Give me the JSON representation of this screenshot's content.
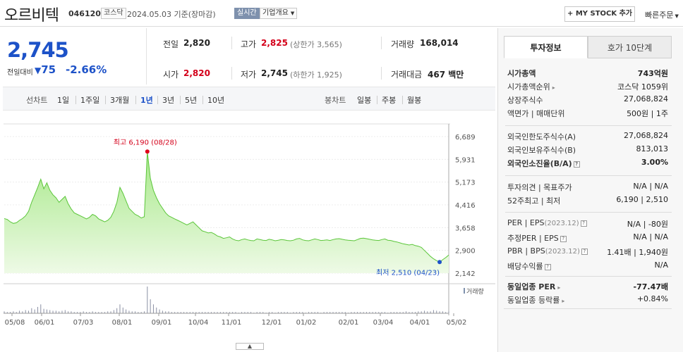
{
  "header": {
    "stock_name": "오르비텍",
    "stock_code": "046120",
    "market": "코스닥",
    "date_text": "2024.05.03  기준(장마감)",
    "realtime_label": "실시간",
    "company_button": "기업개요",
    "mystock_button": "+ MY STOCK 추가",
    "fast_order": "빠른주문"
  },
  "price": {
    "current": "2,745",
    "vs_label": "전일대비",
    "change": "75",
    "change_pct": "-2.66%"
  },
  "quote": {
    "prev_label": "전일",
    "prev_value": "2,820",
    "high_label": "고가",
    "high_value": "2,825",
    "upper_limit": "(상한가 3,565)",
    "volume_label": "거래량",
    "volume_value": "168,014",
    "open_label": "시가",
    "open_value": "2,820",
    "low_label": "저가",
    "low_value": "2,745",
    "lower_limit": "(하한가 1,925)",
    "amount_label": "거래대금",
    "amount_value": "467 백만"
  },
  "periods": {
    "line_label": "선차트",
    "line_items": [
      "1일",
      "1주일",
      "3개월",
      "1년",
      "3년",
      "5년",
      "10년"
    ],
    "active": "1년",
    "candle_label": "봉차트",
    "candle_items": [
      "일봉",
      "주봉",
      "월봉"
    ]
  },
  "chart_data": {
    "type": "area",
    "y_ticks": [
      "6,689",
      "5,931",
      "5,173",
      "4,416",
      "3,658",
      "2,900",
      "2,142"
    ],
    "ylim": [
      2142,
      6689
    ],
    "x_ticks": [
      "05/08",
      "06/01",
      "07/03",
      "08/01",
      "09/01",
      "10/04",
      "11/01",
      "12/01",
      "01/02",
      "02/01",
      "03/04",
      "04/01",
      "05/02"
    ],
    "high_annotation": "최고 6,190 (08/28)",
    "low_annotation": "최저 2,510 (04/23)",
    "high": 6190,
    "low": 2510,
    "volume_label": "거래량",
    "values": [
      3960,
      3930,
      3850,
      3800,
      3820,
      3900,
      3960,
      4050,
      4200,
      4500,
      4750,
      5000,
      5270,
      4950,
      5150,
      4900,
      4750,
      4650,
      4500,
      4600,
      4700,
      4450,
      4280,
      4150,
      4100,
      4050,
      4000,
      3950,
      4000,
      4100,
      4050,
      3950,
      3900,
      3850,
      3900,
      4000,
      4200,
      4500,
      5000,
      4800,
      4550,
      4300,
      4200,
      4100,
      4050,
      3980,
      4020,
      6190,
      5300,
      4900,
      4650,
      4450,
      4300,
      4150,
      4050,
      4000,
      3950,
      3900,
      3850,
      3800,
      3750,
      3800,
      3850,
      3750,
      3650,
      3550,
      3520,
      3480,
      3500,
      3450,
      3380,
      3350,
      3300,
      3320,
      3350,
      3280,
      3240,
      3220,
      3260,
      3280,
      3250,
      3230,
      3220,
      3280,
      3260,
      3240,
      3230,
      3270,
      3250,
      3220,
      3240,
      3260,
      3250,
      3230,
      3220,
      3240,
      3280,
      3300,
      3250,
      3230,
      3220,
      3250,
      3280,
      3260,
      3230,
      3240,
      3250,
      3230,
      3260,
      3280,
      3290,
      3270,
      3250,
      3240,
      3230,
      3220,
      3260,
      3300,
      3310,
      3290,
      3270,
      3250,
      3240,
      3230,
      3260,
      3280,
      3240,
      3230,
      3200,
      3180,
      3150,
      3120,
      3100,
      3080,
      3100,
      3060,
      3040,
      3000,
      2900,
      2800,
      2700,
      2620,
      2560,
      2510,
      2590,
      2660,
      2745
    ],
    "volumes": [
      3,
      2,
      2,
      3,
      2,
      4,
      3,
      5,
      4,
      8,
      6,
      10,
      14,
      7,
      6,
      5,
      4,
      4,
      3,
      4,
      5,
      3,
      3,
      2,
      2,
      2,
      3,
      2,
      2,
      3,
      2,
      2,
      2,
      2,
      3,
      3,
      5,
      8,
      14,
      9,
      6,
      4,
      3,
      3,
      2,
      2,
      3,
      42,
      22,
      14,
      9,
      6,
      4,
      3,
      3,
      2,
      2,
      2,
      2,
      2,
      2,
      2,
      2,
      2,
      2,
      2,
      2,
      2,
      2,
      2,
      2,
      2,
      2,
      2,
      2,
      2,
      2,
      1,
      2,
      2,
      2,
      2,
      1,
      2,
      2,
      2,
      1,
      2,
      2,
      1,
      2,
      2,
      2,
      2,
      1,
      2,
      2,
      2,
      2,
      1,
      2,
      2,
      2,
      2,
      1,
      2,
      2,
      2,
      2,
      2,
      2,
      2,
      2,
      1,
      2,
      2,
      2,
      2,
      2,
      2,
      2,
      2,
      2,
      2,
      2,
      2,
      1,
      2,
      2,
      2,
      2,
      2,
      3,
      2,
      2,
      2,
      3,
      3,
      4,
      3,
      3,
      5,
      4,
      3,
      3,
      2,
      3
    ]
  },
  "right_panel": {
    "tab_invest": "투자정보",
    "tab_orderbook": "호가 10단계",
    "rows": [
      {
        "label": "시가총액",
        "value": "743억원",
        "bold": true
      },
      {
        "label": "시가총액순위",
        "value": "코스닥 1059위",
        "arrow": true
      },
      {
        "label": "상장주식수",
        "value": "27,068,824"
      },
      {
        "label": "액면가 | 매매단위",
        "value": "500원 | 1주"
      }
    ],
    "rows2": [
      {
        "label": "외국인한도주식수(A)",
        "value": "27,068,824"
      },
      {
        "label": "외국인보유주식수(B)",
        "value": "813,013"
      },
      {
        "label": "외국인소진율(B/A)",
        "value": "3.00%",
        "bold": true,
        "q": true
      }
    ],
    "rows3": [
      {
        "label": "투자의견 | 목표주가",
        "value": "N/A | N/A"
      },
      {
        "label": "52주최고 | 최저",
        "value": "6,190 | 2,510"
      }
    ],
    "rows4": [
      {
        "label": "PER | EPS",
        "sub": "(2023.12)",
        "value": "N/A | -80원",
        "q": true
      },
      {
        "label": "추정PER | EPS",
        "value": "N/A | N/A",
        "q": true
      },
      {
        "label": "PBR | BPS",
        "sub": "(2023.12)",
        "value": "1.41배 | 1,940원",
        "q": true
      },
      {
        "label": "배당수익률",
        "value": "N/A",
        "q": true
      }
    ],
    "rows5": [
      {
        "label": "동일업종 PER",
        "value": "-77.47배",
        "bold": true,
        "arrow": true
      },
      {
        "label": "동일업종 등락률",
        "value": "+0.84%",
        "red": true,
        "arrow": true
      }
    ]
  }
}
